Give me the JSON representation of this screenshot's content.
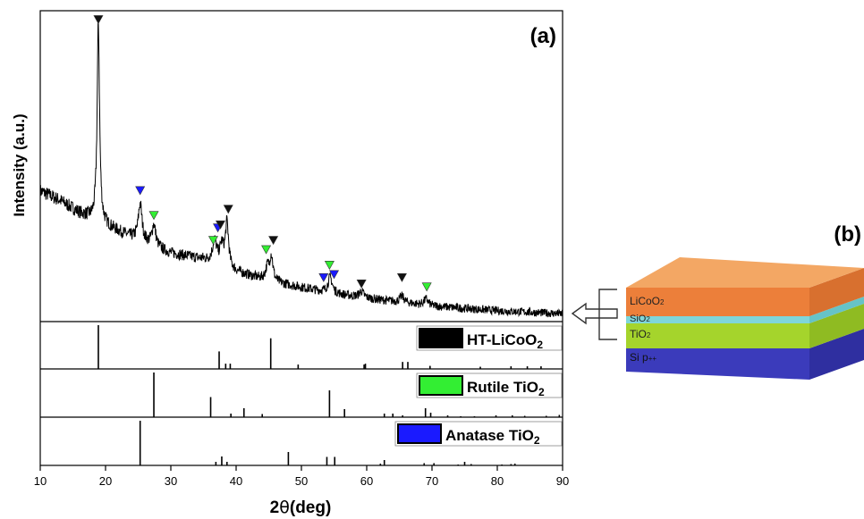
{
  "panel_a": {
    "label": "(a)",
    "ylabel": "Intensity (a.u.)",
    "xlabel_main": "2",
    "xlabel_theta": "θ",
    "xlabel_unit": "(deg)"
  },
  "panel_b": {
    "label": "(b)",
    "layers": [
      {
        "name": "LiCoO",
        "sub": "2",
        "color": "#f19b50"
      },
      {
        "name": "SiO",
        "sub": "2",
        "color": "#6fd0d4"
      },
      {
        "name": "TiO",
        "sub": "2",
        "color": "#a6d62e"
      },
      {
        "name": "Si p",
        "sub": "++",
        "color": "#3d3dc0"
      }
    ]
  },
  "chart_data": {
    "type": "line",
    "xlim": [
      10,
      90
    ],
    "xticks": [
      10,
      20,
      30,
      40,
      50,
      60,
      70,
      80,
      90
    ],
    "xtick_labels": [
      "10",
      "20",
      "30",
      "40",
      "50",
      "60",
      "70",
      "80",
      "90"
    ],
    "ylim": [
      0,
      1
    ],
    "grid": false,
    "xrd_pattern": {
      "baseline": [
        [
          10,
          0.42
        ],
        [
          13,
          0.39
        ],
        [
          16,
          0.35
        ],
        [
          18,
          0.33
        ],
        [
          20,
          0.31
        ],
        [
          25,
          0.26
        ],
        [
          30,
          0.22
        ],
        [
          35,
          0.2
        ],
        [
          40,
          0.16
        ],
        [
          45,
          0.13
        ],
        [
          50,
          0.11
        ],
        [
          55,
          0.09
        ],
        [
          60,
          0.075
        ],
        [
          70,
          0.05
        ],
        [
          80,
          0.035
        ],
        [
          90,
          0.025
        ]
      ],
      "peaks": [
        {
          "x": 18.9,
          "h": 0.64,
          "w": 0.22
        },
        {
          "x": 25.3,
          "h": 0.12,
          "w": 0.35
        },
        {
          "x": 27.4,
          "h": 0.07,
          "w": 0.35
        },
        {
          "x": 36.7,
          "h": 0.07,
          "w": 0.4
        },
        {
          "x": 37.8,
          "h": 0.06,
          "w": 0.35
        },
        {
          "x": 38.6,
          "h": 0.14,
          "w": 0.3
        },
        {
          "x": 44.8,
          "h": 0.04,
          "w": 0.35
        },
        {
          "x": 45.4,
          "h": 0.08,
          "w": 0.3
        },
        {
          "x": 54.4,
          "h": 0.05,
          "w": 0.4
        },
        {
          "x": 59.2,
          "h": 0.02,
          "w": 0.4
        },
        {
          "x": 65.4,
          "h": 0.02,
          "w": 0.4
        },
        {
          "x": 69.1,
          "h": 0.02,
          "w": 0.4
        }
      ]
    },
    "markers": [
      {
        "x": 18.9,
        "y": 0.97,
        "phase": "HT-LiCoO2",
        "color": "#111111"
      },
      {
        "x": 25.3,
        "y": 0.42,
        "phase": "Anatase TiO2",
        "color": "#1a1aff"
      },
      {
        "x": 27.4,
        "y": 0.34,
        "phase": "Rutile TiO2",
        "color": "#33ee33"
      },
      {
        "x": 36.5,
        "y": 0.26,
        "phase": "Rutile TiO2",
        "color": "#33ee33"
      },
      {
        "x": 37.2,
        "y": 0.3,
        "phase": "Anatase TiO2",
        "color": "#1a1aff"
      },
      {
        "x": 37.6,
        "y": 0.31,
        "phase": "HT-LiCoO2",
        "color": "#111111"
      },
      {
        "x": 38.8,
        "y": 0.36,
        "phase": "HT-LiCoO2",
        "color": "#111111"
      },
      {
        "x": 44.6,
        "y": 0.23,
        "phase": "Rutile TiO2",
        "color": "#33ee33"
      },
      {
        "x": 45.7,
        "y": 0.26,
        "phase": "HT-LiCoO2",
        "color": "#111111"
      },
      {
        "x": 53.4,
        "y": 0.14,
        "phase": "Anatase TiO2",
        "color": "#1a1aff"
      },
      {
        "x": 54.3,
        "y": 0.18,
        "phase": "Rutile TiO2",
        "color": "#33ee33"
      },
      {
        "x": 55.0,
        "y": 0.15,
        "phase": "Anatase TiO2",
        "color": "#1a1aff"
      },
      {
        "x": 59.2,
        "y": 0.12,
        "phase": "HT-LiCoO2",
        "color": "#111111"
      },
      {
        "x": 65.4,
        "y": 0.14,
        "phase": "HT-LiCoO2",
        "color": "#111111"
      },
      {
        "x": 69.2,
        "y": 0.11,
        "phase": "Rutile TiO2",
        "color": "#33ee33"
      }
    ],
    "references": [
      {
        "name": "HT-LiCoO",
        "sub": "2",
        "color": "#000000",
        "lines": [
          [
            18.9,
            1.0
          ],
          [
            37.4,
            0.4
          ],
          [
            38.4,
            0.12
          ],
          [
            39.1,
            0.12
          ],
          [
            45.3,
            0.7
          ],
          [
            49.5,
            0.1
          ],
          [
            59.6,
            0.1
          ],
          [
            59.8,
            0.12
          ],
          [
            65.5,
            0.16
          ],
          [
            66.3,
            0.16
          ],
          [
            69.7,
            0.07
          ],
          [
            77.4,
            0.05
          ],
          [
            82.1,
            0.06
          ],
          [
            84.6,
            0.06
          ],
          [
            86.7,
            0.06
          ]
        ]
      },
      {
        "name": "Rutile TiO",
        "sub": "2",
        "color": "#33ee33",
        "lines": [
          [
            27.4,
            1.0
          ],
          [
            36.1,
            0.45
          ],
          [
            39.2,
            0.08
          ],
          [
            41.2,
            0.2
          ],
          [
            44.0,
            0.07
          ],
          [
            54.3,
            0.6
          ],
          [
            56.6,
            0.18
          ],
          [
            62.7,
            0.08
          ],
          [
            64.0,
            0.08
          ],
          [
            65.5,
            0.04
          ],
          [
            69.0,
            0.2
          ],
          [
            69.8,
            0.1
          ],
          [
            72.4,
            0.04
          ],
          [
            74.4,
            0.02
          ],
          [
            76.5,
            0.02
          ],
          [
            79.8,
            0.04
          ],
          [
            82.3,
            0.04
          ],
          [
            84.2,
            0.03
          ],
          [
            87.5,
            0.03
          ],
          [
            89.5,
            0.05
          ]
        ]
      },
      {
        "name": "Anatase TiO",
        "sub": "2",
        "color": "#1a1aff",
        "lines": [
          [
            25.3,
            1.0
          ],
          [
            36.9,
            0.08
          ],
          [
            37.8,
            0.2
          ],
          [
            38.6,
            0.08
          ],
          [
            48.0,
            0.3
          ],
          [
            53.9,
            0.19
          ],
          [
            55.1,
            0.19
          ],
          [
            62.1,
            0.04
          ],
          [
            62.7,
            0.12
          ],
          [
            68.8,
            0.05
          ],
          [
            70.3,
            0.05
          ],
          [
            74.0,
            0.02
          ],
          [
            75.0,
            0.08
          ],
          [
            76.0,
            0.03
          ],
          [
            80.7,
            0.02
          ],
          [
            82.1,
            0.03
          ],
          [
            82.7,
            0.04
          ]
        ]
      }
    ]
  }
}
